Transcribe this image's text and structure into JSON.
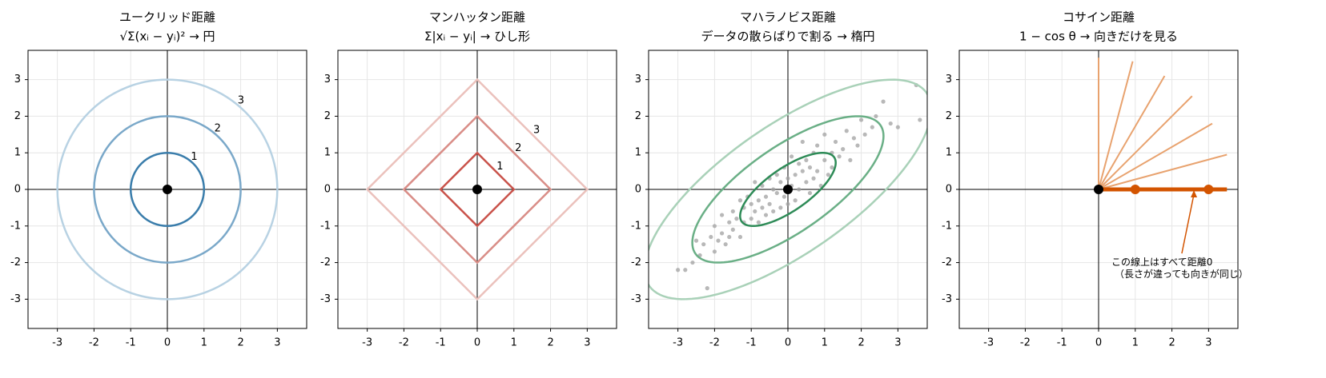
{
  "chart_data": [
    {
      "type": "circles",
      "title": [
        "ユークリッド距離",
        "√Σ(xᵢ − yᵢ)² → 円"
      ],
      "levels": [
        1,
        2,
        3
      ],
      "colors": [
        "#3a7dab",
        "#7aa8c9",
        "#b8d2e3"
      ],
      "label_color": "#2b6f9e",
      "center": [
        0,
        0
      ],
      "xlim": [
        -3.8,
        3.8
      ],
      "ylim": [
        -3.8,
        3.8
      ],
      "xticks": [
        -3,
        -2,
        -1,
        0,
        1,
        2,
        3
      ],
      "yticks": [
        -3,
        -2,
        -1,
        0,
        1,
        2,
        3
      ],
      "grid": true
    },
    {
      "type": "diamonds",
      "title": [
        "マンハッタン距離",
        "Σ|xᵢ − yᵢ| → ひし形"
      ],
      "levels": [
        1,
        2,
        3
      ],
      "colors": [
        "#c9524a",
        "#d98d87",
        "#ebc1bc"
      ],
      "label_color": "#c0392b",
      "center": [
        0,
        0
      ],
      "xlim": [
        -3.8,
        3.8
      ],
      "ylim": [
        -3.8,
        3.8
      ],
      "xticks": [
        -3,
        -2,
        -1,
        0,
        1,
        2,
        3
      ],
      "yticks": [
        -3,
        -2,
        -1,
        0,
        1,
        2,
        3
      ],
      "grid": true
    },
    {
      "type": "ellipses",
      "title": [
        "マハラノビス距離",
        "データの散らばりで割る → 楕円"
      ],
      "levels": [
        1,
        2,
        3
      ],
      "colors": [
        "#2e8b57",
        "#6aaf86",
        "#a9d1b8"
      ],
      "cov": [
        [
          1.7,
          0.95
        ],
        [
          0.95,
          1.0
        ]
      ],
      "scatter_color": "#a0a0a0",
      "x": [
        -3.0,
        -2.8,
        -2.6,
        -2.5,
        -2.4,
        -2.3,
        -2.2,
        -2.1,
        -2.0,
        -2.0,
        -1.9,
        -1.8,
        -1.8,
        -1.7,
        -1.6,
        -1.6,
        -1.5,
        -1.5,
        -1.4,
        -1.3,
        -1.3,
        -1.2,
        -1.2,
        -1.1,
        -1.0,
        -1.0,
        -0.9,
        -0.9,
        -0.8,
        -0.8,
        -0.7,
        -0.7,
        -0.6,
        -0.6,
        -0.5,
        -0.5,
        -0.4,
        -0.4,
        -0.3,
        -0.3,
        -0.2,
        -0.2,
        -0.1,
        -0.1,
        0.0,
        0.0,
        0.1,
        0.1,
        0.2,
        0.2,
        0.3,
        0.3,
        0.4,
        0.4,
        0.5,
        0.5,
        0.6,
        0.6,
        0.7,
        0.7,
        0.8,
        0.8,
        0.9,
        1.0,
        1.0,
        1.1,
        1.2,
        1.2,
        1.3,
        1.4,
        1.5,
        1.6,
        1.7,
        1.8,
        1.9,
        2.0,
        2.1,
        2.3,
        2.4,
        2.6,
        2.8,
        3.0,
        3.5,
        3.6
      ],
      "y": [
        -2.2,
        -2.2,
        -2.0,
        -1.4,
        -1.8,
        -1.5,
        -2.7,
        -1.3,
        -1.7,
        -1.0,
        -1.4,
        -1.2,
        -0.7,
        -1.5,
        -0.9,
        -1.3,
        -0.6,
        -1.1,
        -0.8,
        -1.3,
        -0.3,
        -0.9,
        -0.5,
        -0.2,
        -0.8,
        -0.4,
        -0.6,
        0.2,
        -0.9,
        -0.3,
        -0.5,
        0.1,
        -0.7,
        -0.2,
        -0.4,
        0.3,
        -0.6,
        0.0,
        0.4,
        -0.1,
        -0.5,
        0.2,
        0.6,
        -0.2,
        0.3,
        -0.4,
        0.9,
        0.1,
        0.4,
        -0.3,
        0.7,
        0.0,
        0.5,
        1.3,
        0.2,
        0.8,
        -0.1,
        0.6,
        1.0,
        0.3,
        0.5,
        1.2,
        0.1,
        0.8,
        1.5,
        0.4,
        1.0,
        0.6,
        1.3,
        0.9,
        1.1,
        1.6,
        0.8,
        1.4,
        1.2,
        1.9,
        1.5,
        1.7,
        2.0,
        2.4,
        1.8,
        1.7,
        2.85,
        1.9
      ],
      "center": [
        0,
        0
      ],
      "xlim": [
        -3.8,
        3.8
      ],
      "ylim": [
        -3.8,
        3.8
      ],
      "xticks": [
        -3,
        -2,
        -1,
        0,
        1,
        2,
        3
      ],
      "yticks": [
        -3,
        -2,
        -1,
        0,
        1,
        2,
        3
      ],
      "grid": true
    },
    {
      "type": "rays",
      "title": [
        "コサイン距離",
        "1 − cos θ → 向きだけを見る"
      ],
      "ray_x": [
        0,
        0.93,
        1.8,
        2.55,
        3.1,
        3.5
      ],
      "ray_y": [
        3.6,
        3.5,
        3.1,
        2.55,
        1.8,
        0.95
      ],
      "ray_color": "#e8a26e",
      "line_x": [
        0,
        3.5
      ],
      "points_x": [
        1,
        3
      ],
      "points_y": [
        0,
        0
      ],
      "color": "#d35400",
      "annotation": [
        "この線上はすべて距離0",
        "（長さが違っても向きが同じ）"
      ],
      "center": [
        0,
        0
      ],
      "xlim": [
        -3.8,
        3.8
      ],
      "ylim": [
        -3.8,
        3.8
      ],
      "xticks": [
        -3,
        -2,
        -1,
        0,
        1,
        2,
        3
      ],
      "yticks": [
        -3,
        -2,
        -1,
        0,
        1,
        2,
        3
      ],
      "grid": true
    }
  ]
}
